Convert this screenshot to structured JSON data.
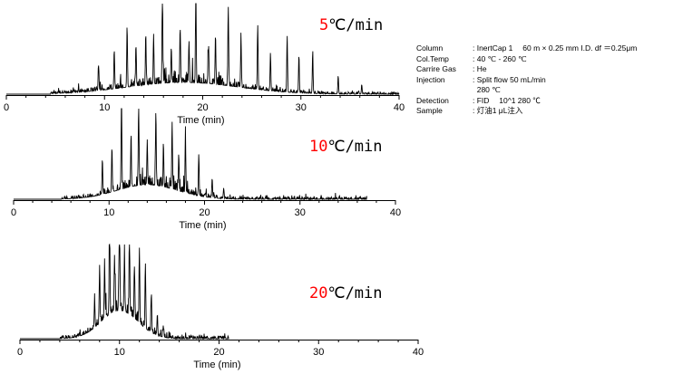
{
  "chart_data": [
    {
      "type": "line",
      "title": "",
      "rate_number": "5",
      "rate_unit": "℃/min",
      "xlabel": "Time (min)",
      "ylabel": "",
      "xlim": [
        0,
        40
      ],
      "xticks": [
        "0",
        "10",
        "20",
        "30",
        "40"
      ],
      "trace_end": 40,
      "grid": false,
      "baseline_onset": 4.5,
      "noise_level": 0.07,
      "hump": {
        "center": 18,
        "width": 8,
        "height": 0.13
      },
      "peaks": [
        {
          "t": 9.4,
          "h": 0.28
        },
        {
          "t": 11.0,
          "h": 0.36
        },
        {
          "t": 12.3,
          "h": 0.66
        },
        {
          "t": 13.2,
          "h": 0.42
        },
        {
          "t": 14.2,
          "h": 0.55
        },
        {
          "t": 15.0,
          "h": 0.5
        },
        {
          "t": 15.9,
          "h": 1.0
        },
        {
          "t": 16.8,
          "h": 0.4
        },
        {
          "t": 17.7,
          "h": 0.62
        },
        {
          "t": 18.6,
          "h": 0.46
        },
        {
          "t": 19.3,
          "h": 0.95
        },
        {
          "t": 20.6,
          "h": 0.42
        },
        {
          "t": 21.3,
          "h": 0.55
        },
        {
          "t": 22.6,
          "h": 0.88
        },
        {
          "t": 23.9,
          "h": 0.55
        },
        {
          "t": 25.6,
          "h": 0.72
        },
        {
          "t": 26.9,
          "h": 0.42
        },
        {
          "t": 28.6,
          "h": 0.63
        },
        {
          "t": 29.8,
          "h": 0.4
        },
        {
          "t": 31.2,
          "h": 0.45
        },
        {
          "t": 33.8,
          "h": 0.2
        },
        {
          "t": 36.2,
          "h": 0.1
        }
      ]
    },
    {
      "type": "line",
      "title": "",
      "rate_number": "10",
      "rate_unit": "℃/min",
      "xlabel": "Time (min)",
      "ylabel": "",
      "xlim": [
        0,
        40
      ],
      "xticks": [
        "0",
        "10",
        "20",
        "30",
        "40"
      ],
      "trace_end": 37,
      "grid": false,
      "baseline_onset": 5,
      "noise_level": 0.08,
      "hump": {
        "center": 14,
        "width": 4.5,
        "height": 0.16
      },
      "peaks": [
        {
          "t": 9.3,
          "h": 0.4
        },
        {
          "t": 10.3,
          "h": 0.5
        },
        {
          "t": 11.3,
          "h": 0.98
        },
        {
          "t": 12.3,
          "h": 0.55
        },
        {
          "t": 13.1,
          "h": 0.93
        },
        {
          "t": 14.0,
          "h": 0.5
        },
        {
          "t": 14.9,
          "h": 0.81
        },
        {
          "t": 15.7,
          "h": 0.45
        },
        {
          "t": 16.6,
          "h": 0.7
        },
        {
          "t": 17.3,
          "h": 0.4
        },
        {
          "t": 18.0,
          "h": 0.6
        },
        {
          "t": 19.4,
          "h": 0.46
        },
        {
          "t": 20.8,
          "h": 0.22
        },
        {
          "t": 22.0,
          "h": 0.1
        }
      ]
    },
    {
      "type": "line",
      "title": "",
      "rate_number": "20",
      "rate_unit": "℃/min",
      "xlabel": "Time (min)",
      "ylabel": "",
      "xlim": [
        0,
        40
      ],
      "xticks": [
        "0",
        "10",
        "20",
        "30",
        "40"
      ],
      "trace_end": 21,
      "grid": false,
      "baseline_onset": 4,
      "noise_level": 0.09,
      "hump": {
        "center": 10,
        "width": 2.6,
        "height": 0.3
      },
      "peaks": [
        {
          "t": 7.5,
          "h": 0.3
        },
        {
          "t": 8.0,
          "h": 0.55
        },
        {
          "t": 8.5,
          "h": 0.55
        },
        {
          "t": 9.0,
          "h": 1.0
        },
        {
          "t": 9.5,
          "h": 0.6
        },
        {
          "t": 10.0,
          "h": 1.0
        },
        {
          "t": 10.5,
          "h": 0.62
        },
        {
          "t": 11.0,
          "h": 0.88
        },
        {
          "t": 11.5,
          "h": 0.55
        },
        {
          "t": 12.0,
          "h": 0.8
        },
        {
          "t": 12.6,
          "h": 0.7
        },
        {
          "t": 13.2,
          "h": 0.42
        },
        {
          "t": 13.8,
          "h": 0.22
        },
        {
          "t": 14.4,
          "h": 0.12
        }
      ]
    }
  ],
  "conditions": [
    {
      "label": "Column",
      "value": ": InertCap 1　 60 m × 0.25 mm I.D. df ＝0.25μm"
    },
    {
      "label": "Col.Temp",
      "value": ": 40 ℃ - 260 ℃"
    },
    {
      "label": "Carrire Gas",
      "value": ": He"
    },
    {
      "label": "Injection",
      "value": ": Split flow 50 mL/min"
    },
    {
      "label": "",
      "value": "  280 ℃"
    },
    {
      "label": "Detection",
      "value": ": FID　 10^1  280 ℃"
    },
    {
      "label": "Sample",
      "value": ": 灯油1 μL注入"
    }
  ]
}
